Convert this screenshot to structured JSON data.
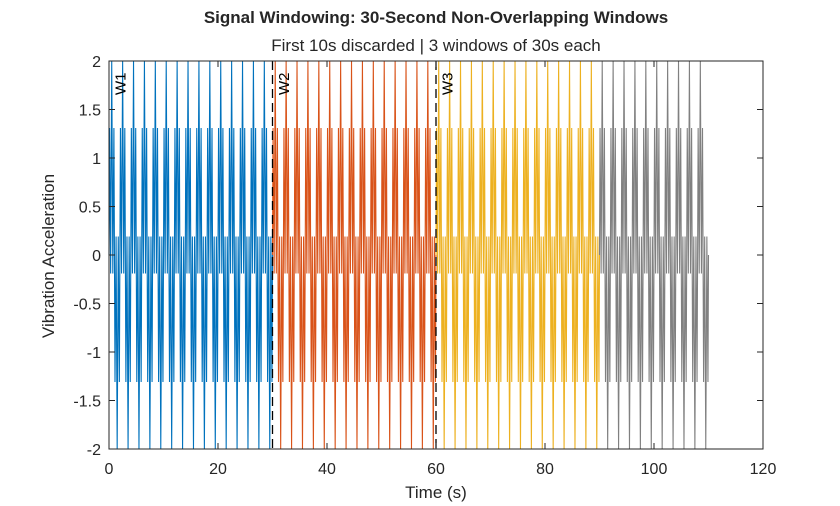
{
  "chart_data": {
    "type": "line",
    "title": "Signal Windowing: 30-Second Non-Overlapping Windows",
    "subtitle": "First 10s discarded | 3 windows of 30s each",
    "xlabel": "Time (s)",
    "ylabel": "Vibration Acceleration",
    "xlim": [
      0,
      120
    ],
    "ylim": [
      -2,
      2
    ],
    "xticks": [
      0,
      20,
      40,
      60,
      80,
      100,
      120
    ],
    "yticks": [
      2,
      1.5,
      1,
      0.5,
      0,
      -0.5,
      -1,
      -1.5,
      -2
    ],
    "ytick_labels": [
      "2",
      "1.5",
      "1",
      "0.5",
      "0",
      "-0.5",
      "-1",
      "-1.5",
      "-2"
    ],
    "grid": false,
    "signal": {
      "frequency_hz": 0.5,
      "harmonic_frequency_hz": 2.5,
      "levels": [
        1.9,
        0.75,
        0,
        -0.75,
        -1.9
      ]
    },
    "series": [
      {
        "name": "W1",
        "x_range": [
          0,
          30
        ],
        "color": "#0072BD"
      },
      {
        "name": "W2",
        "x_range": [
          30,
          60
        ],
        "color": "#D95319"
      },
      {
        "name": "W3",
        "x_range": [
          60,
          90
        ],
        "color": "#EDB120"
      },
      {
        "name": "",
        "x_range": [
          90,
          110
        ],
        "color": "#808080"
      }
    ],
    "window_boundaries": [
      30,
      60
    ],
    "window_labels": [
      {
        "text": "W1",
        "x": 1
      },
      {
        "text": "W2",
        "x": 31
      },
      {
        "text": "W3",
        "x": 61
      }
    ]
  }
}
